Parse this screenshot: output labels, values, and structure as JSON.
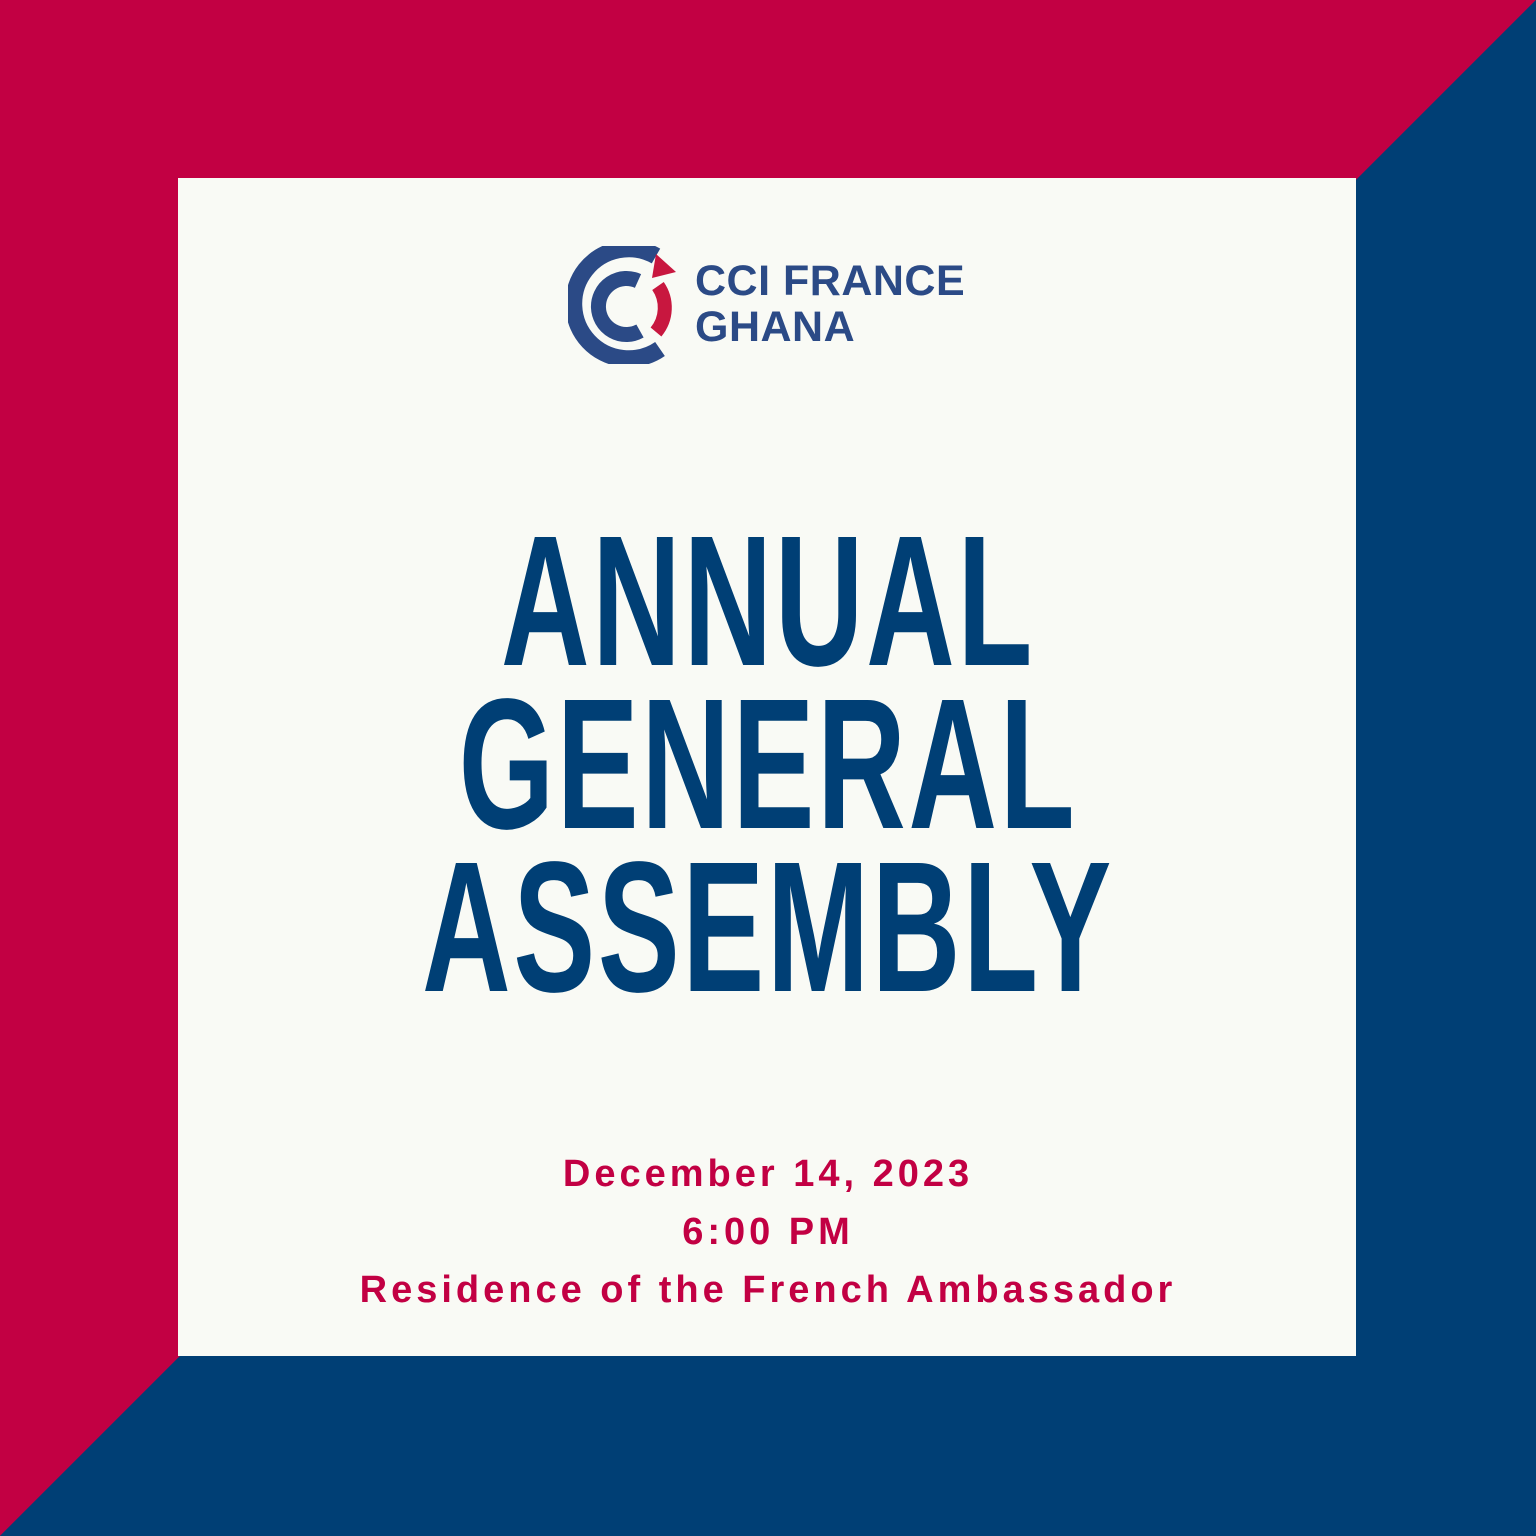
{
  "colors": {
    "red": "#c20043",
    "blue": "#003f75",
    "panel": "#f9faf5",
    "logo_blue": "#2b4a86"
  },
  "logo": {
    "line1": "CCI FRANCE",
    "line2": "GHANA"
  },
  "title": {
    "line1": "ANNUAL",
    "line2": "GENERAL",
    "line3": "ASSEMBLY"
  },
  "details": {
    "date": "December 14, 2023",
    "time": "6:00 PM",
    "venue": "Residence of the French Ambassador"
  }
}
